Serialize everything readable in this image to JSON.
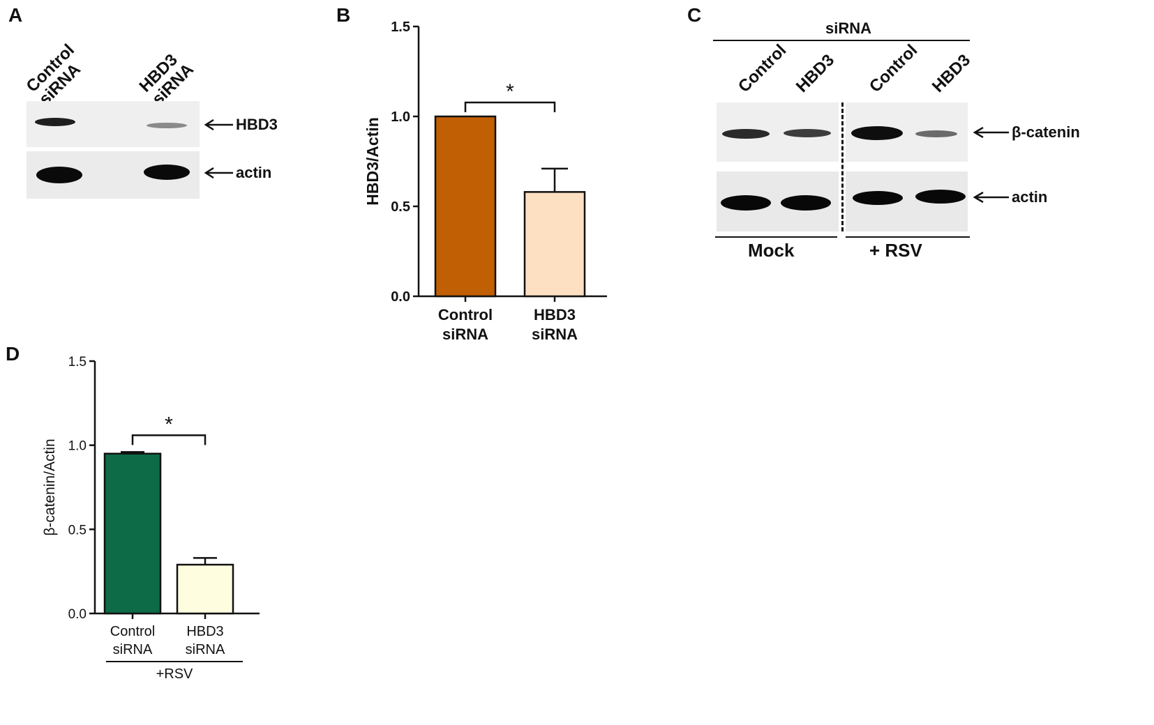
{
  "panels": {
    "a": {
      "letter": "A",
      "lanes": [
        {
          "line1": "Control",
          "line2": "siRNA"
        },
        {
          "line1": "HBD3",
          "line2": "siRNA"
        }
      ],
      "markers": [
        "HBD3",
        "actin"
      ]
    },
    "b": {
      "letter": "B"
    },
    "c": {
      "letter": "C",
      "header": "siRNA",
      "lanes": [
        "Control",
        "HBD3",
        "Control",
        "HBD3"
      ],
      "markers": [
        "β-catenin",
        "actin"
      ],
      "groups": [
        "Mock",
        "+ RSV"
      ]
    },
    "d": {
      "letter": "D",
      "group_label": "+RSV"
    }
  },
  "chart_data": [
    {
      "type": "bar",
      "panel": "B",
      "categories": [
        "Control siRNA",
        "HBD3 siRNA"
      ],
      "category_lines": [
        [
          "Control",
          "siRNA"
        ],
        [
          "HBD3",
          "siRNA"
        ]
      ],
      "values": [
        1.0,
        0.58
      ],
      "errors": [
        0.0,
        0.13
      ],
      "colors": [
        "#c15f05",
        "#fddfc1"
      ],
      "ylabel": "HBD3/Actin",
      "ylim": [
        0,
        1.5
      ],
      "yticks": [
        "0.0",
        "0.5",
        "1.0",
        "1.5"
      ],
      "significance": "*"
    },
    {
      "type": "bar",
      "panel": "D",
      "categories": [
        "Control siRNA",
        "HBD3 siRNA"
      ],
      "category_lines": [
        [
          "Control",
          "siRNA"
        ],
        [
          "HBD3",
          "siRNA"
        ]
      ],
      "values": [
        0.95,
        0.29
      ],
      "errors": [
        0.01,
        0.04
      ],
      "colors": [
        "#0e6b47",
        "#fefde0"
      ],
      "ylabel": "β-catenin/Actin",
      "ylim": [
        0,
        1.5
      ],
      "yticks": [
        "0.0",
        "0.5",
        "1.0",
        "1.5"
      ],
      "significance": "*"
    }
  ]
}
